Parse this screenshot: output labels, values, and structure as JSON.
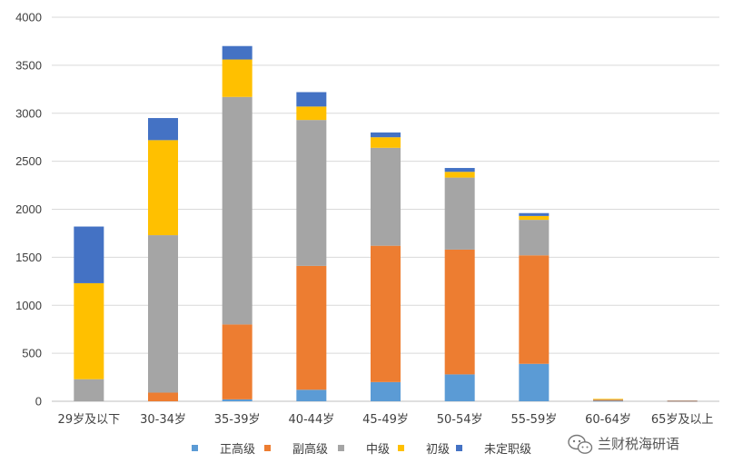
{
  "chart_data": {
    "type": "bar",
    "stacked": true,
    "categories": [
      "29岁及以下",
      "30-34岁",
      "35-39岁",
      "40-44岁",
      "45-49岁",
      "50-54岁",
      "55-59岁",
      "60-64岁",
      "65岁及以上"
    ],
    "series": [
      {
        "name": "正高级",
        "color": "#5B9BD5",
        "values": [
          0,
          0,
          20,
          120,
          200,
          280,
          390,
          5,
          2
        ]
      },
      {
        "name": "副高级",
        "color": "#ED7D31",
        "values": [
          0,
          90,
          780,
          1290,
          1420,
          1300,
          1130,
          10,
          3
        ]
      },
      {
        "name": "中级",
        "color": "#A5A5A5",
        "values": [
          230,
          1640,
          2370,
          1520,
          1020,
          750,
          370,
          6,
          5
        ]
      },
      {
        "name": "初级",
        "color": "#FFC000",
        "values": [
          1000,
          990,
          390,
          140,
          110,
          60,
          40,
          4,
          0
        ]
      },
      {
        "name": "未定职级",
        "color": "#4472C4",
        "values": [
          590,
          230,
          140,
          150,
          50,
          40,
          30,
          0,
          0
        ]
      }
    ],
    "ylim": [
      0,
      4000
    ],
    "yticks": [
      "0",
      "500",
      "1000",
      "1500",
      "2000",
      "2500",
      "3000",
      "3500",
      "4000"
    ],
    "grid": true,
    "legend_position": "bottom",
    "title": "",
    "xlabel": "",
    "ylabel": ""
  },
  "watermark": {
    "text": "兰财税海研语",
    "icon": "wechat-icon"
  }
}
